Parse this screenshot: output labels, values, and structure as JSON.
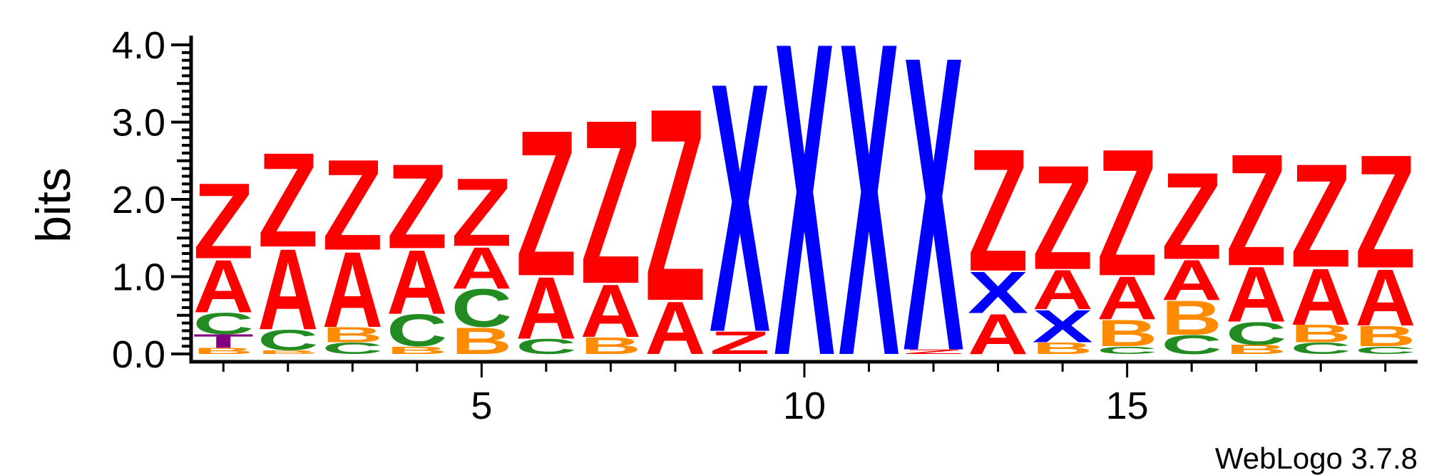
{
  "chart_data": {
    "type": "sequence-logo",
    "ylabel": "bits",
    "ylim": [
      0,
      4.0
    ],
    "y_ticks": [
      "0.0",
      "1.0",
      "2.0",
      "3.0",
      "4.0"
    ],
    "xlim": [
      1,
      19
    ],
    "x_ticks": [
      5,
      10,
      15
    ],
    "colors": {
      "Z": "#ff0000",
      "A": "#ff0000",
      "X": "#0000ff",
      "C": "#228b22",
      "B": "#ff8c00",
      "T": "#800080"
    },
    "positions": [
      {
        "position": 1,
        "stack": [
          {
            "letter": "B",
            "bits": 0.08
          },
          {
            "letter": "T",
            "bits": 0.18
          },
          {
            "letter": "C",
            "bits": 0.28
          },
          {
            "letter": "A",
            "bits": 0.7
          },
          {
            "letter": "Z",
            "bits": 1.0
          }
        ]
      },
      {
        "position": 2,
        "stack": [
          {
            "letter": "B",
            "bits": 0.05
          },
          {
            "letter": "C",
            "bits": 0.27
          },
          {
            "letter": "A",
            "bits": 1.07
          },
          {
            "letter": "Z",
            "bits": 1.25
          }
        ]
      },
      {
        "position": 3,
        "stack": [
          {
            "letter": "C",
            "bits": 0.15
          },
          {
            "letter": "B",
            "bits": 0.2
          },
          {
            "letter": "A",
            "bits": 1.0
          },
          {
            "letter": "Z",
            "bits": 1.2
          }
        ]
      },
      {
        "position": 4,
        "stack": [
          {
            "letter": "B",
            "bits": 0.1
          },
          {
            "letter": "C",
            "bits": 0.42
          },
          {
            "letter": "A",
            "bits": 0.85
          },
          {
            "letter": "Z",
            "bits": 1.12
          }
        ]
      },
      {
        "position": 5,
        "stack": [
          {
            "letter": "B",
            "bits": 0.35
          },
          {
            "letter": "C",
            "bits": 0.5
          },
          {
            "letter": "A",
            "bits": 0.55
          },
          {
            "letter": "Z",
            "bits": 0.9
          }
        ]
      },
      {
        "position": 6,
        "stack": [
          {
            "letter": "C",
            "bits": 0.2
          },
          {
            "letter": "A",
            "bits": 0.82
          },
          {
            "letter": "Z",
            "bits": 1.93
          }
        ]
      },
      {
        "position": 7,
        "stack": [
          {
            "letter": "B",
            "bits": 0.22
          },
          {
            "letter": "A",
            "bits": 0.7
          },
          {
            "letter": "Z",
            "bits": 2.17
          }
        ]
      },
      {
        "position": 8,
        "stack": [
          {
            "letter": "A",
            "bits": 0.7
          },
          {
            "letter": "Z",
            "bits": 2.55
          }
        ]
      },
      {
        "position": 9,
        "stack": [
          {
            "letter": "Z",
            "bits": 0.3
          },
          {
            "letter": "X",
            "bits": 3.3
          }
        ]
      },
      {
        "position": 10,
        "stack": [
          {
            "letter": "X",
            "bits": 4.15
          }
        ]
      },
      {
        "position": 11,
        "stack": [
          {
            "letter": "X",
            "bits": 4.15
          }
        ]
      },
      {
        "position": 12,
        "stack": [
          {
            "letter": "Z",
            "bits": 0.06
          },
          {
            "letter": "X",
            "bits": 3.9
          }
        ]
      },
      {
        "position": 13,
        "stack": [
          {
            "letter": "A",
            "bits": 0.53
          },
          {
            "letter": "X",
            "bits": 0.55
          },
          {
            "letter": "Z",
            "bits": 1.62
          }
        ]
      },
      {
        "position": 14,
        "stack": [
          {
            "letter": "B",
            "bits": 0.15
          },
          {
            "letter": "X",
            "bits": 0.43
          },
          {
            "letter": "A",
            "bits": 0.52
          },
          {
            "letter": "Z",
            "bits": 1.38
          }
        ]
      },
      {
        "position": 15,
        "stack": [
          {
            "letter": "C",
            "bits": 0.1
          },
          {
            "letter": "B",
            "bits": 0.35
          },
          {
            "letter": "A",
            "bits": 0.57
          },
          {
            "letter": "Z",
            "bits": 1.68
          }
        ]
      },
      {
        "position": 16,
        "stack": [
          {
            "letter": "C",
            "bits": 0.25
          },
          {
            "letter": "B",
            "bits": 0.45
          },
          {
            "letter": "A",
            "bits": 0.53
          },
          {
            "letter": "Z",
            "bits": 1.15
          }
        ]
      },
      {
        "position": 17,
        "stack": [
          {
            "letter": "B",
            "bits": 0.12
          },
          {
            "letter": "C",
            "bits": 0.3
          },
          {
            "letter": "A",
            "bits": 0.73
          },
          {
            "letter": "Z",
            "bits": 1.48
          }
        ]
      },
      {
        "position": 18,
        "stack": [
          {
            "letter": "C",
            "bits": 0.15
          },
          {
            "letter": "B",
            "bits": 0.23
          },
          {
            "letter": "A",
            "bits": 0.75
          },
          {
            "letter": "Z",
            "bits": 1.37
          }
        ]
      },
      {
        "position": 19,
        "stack": [
          {
            "letter": "C",
            "bits": 0.1
          },
          {
            "letter": "B",
            "bits": 0.27
          },
          {
            "letter": "A",
            "bits": 0.75
          },
          {
            "letter": "Z",
            "bits": 1.5
          }
        ]
      }
    ]
  },
  "credit": "WebLogo 3.7.8"
}
